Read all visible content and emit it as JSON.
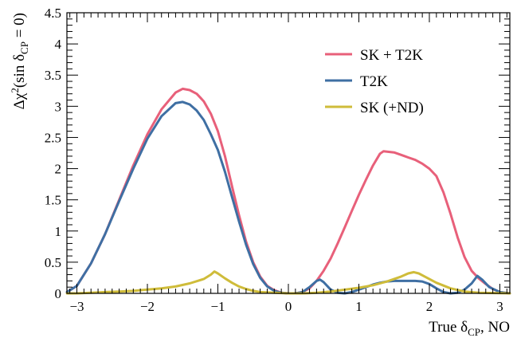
{
  "chart_data": {
    "type": "line",
    "xlabel": {
      "main": "True δ",
      "sub": "CP",
      "rest": ", NO"
    },
    "ylabel": {
      "pre": "Δχ",
      "sup": "2",
      "mid": "(sin δ",
      "sub": "CP",
      "post": " = 0)"
    },
    "xlim": [
      -3.1416,
      3.1416
    ],
    "ylim": [
      0,
      4.5
    ],
    "xticks": [
      -3,
      -2,
      -1,
      0,
      1,
      2,
      3
    ],
    "xtick_labels": [
      "−3",
      "−2",
      "−1",
      "0",
      "1",
      "2",
      "3"
    ],
    "yticks": [
      0,
      0.5,
      1,
      1.5,
      2,
      2.5,
      3,
      3.5,
      4,
      4.5
    ],
    "ytick_labels": [
      "0",
      "0.5",
      "1",
      "1.5",
      "2",
      "2.5",
      "3",
      "3.5",
      "4",
      "4.5"
    ],
    "legend_position": "top-right",
    "grid": false,
    "series": [
      {
        "name": "SK + T2K",
        "color": "#e8607a",
        "points": [
          [
            -3.14,
            0.02
          ],
          [
            -3.0,
            0.12
          ],
          [
            -2.8,
            0.48
          ],
          [
            -2.6,
            0.95
          ],
          [
            -2.4,
            1.5
          ],
          [
            -2.2,
            2.05
          ],
          [
            -2.0,
            2.55
          ],
          [
            -1.8,
            2.95
          ],
          [
            -1.6,
            3.22
          ],
          [
            -1.5,
            3.28
          ],
          [
            -1.4,
            3.26
          ],
          [
            -1.3,
            3.2
          ],
          [
            -1.2,
            3.08
          ],
          [
            -1.1,
            2.88
          ],
          [
            -1.0,
            2.6
          ],
          [
            -0.9,
            2.2
          ],
          [
            -0.8,
            1.72
          ],
          [
            -0.7,
            1.25
          ],
          [
            -0.6,
            0.83
          ],
          [
            -0.5,
            0.5
          ],
          [
            -0.4,
            0.27
          ],
          [
            -0.3,
            0.12
          ],
          [
            -0.2,
            0.05
          ],
          [
            -0.1,
            0.01
          ],
          [
            0.0,
            0.0
          ],
          [
            0.1,
            0.0
          ],
          [
            0.2,
            0.02
          ],
          [
            0.3,
            0.08
          ],
          [
            0.4,
            0.2
          ],
          [
            0.5,
            0.36
          ],
          [
            0.6,
            0.56
          ],
          [
            0.7,
            0.8
          ],
          [
            0.8,
            1.06
          ],
          [
            0.9,
            1.32
          ],
          [
            1.0,
            1.58
          ],
          [
            1.1,
            1.82
          ],
          [
            1.2,
            2.05
          ],
          [
            1.3,
            2.24
          ],
          [
            1.35,
            2.28
          ],
          [
            1.5,
            2.26
          ],
          [
            1.6,
            2.22
          ],
          [
            1.7,
            2.18
          ],
          [
            1.8,
            2.14
          ],
          [
            1.9,
            2.08
          ],
          [
            2.0,
            2.0
          ],
          [
            2.1,
            1.88
          ],
          [
            2.2,
            1.62
          ],
          [
            2.3,
            1.28
          ],
          [
            2.4,
            0.9
          ],
          [
            2.5,
            0.58
          ],
          [
            2.6,
            0.36
          ],
          [
            2.7,
            0.24
          ],
          [
            2.8,
            0.15
          ],
          [
            2.9,
            0.07
          ],
          [
            3.0,
            0.02
          ],
          [
            3.14,
            0.0
          ]
        ]
      },
      {
        "name": "T2K",
        "color": "#3f6fa3",
        "points": [
          [
            -3.14,
            0.02
          ],
          [
            -3.0,
            0.12
          ],
          [
            -2.8,
            0.48
          ],
          [
            -2.6,
            0.95
          ],
          [
            -2.4,
            1.48
          ],
          [
            -2.2,
            2.0
          ],
          [
            -2.0,
            2.48
          ],
          [
            -1.8,
            2.84
          ],
          [
            -1.6,
            3.05
          ],
          [
            -1.5,
            3.07
          ],
          [
            -1.4,
            3.03
          ],
          [
            -1.3,
            2.93
          ],
          [
            -1.2,
            2.78
          ],
          [
            -1.1,
            2.55
          ],
          [
            -1.0,
            2.3
          ],
          [
            -0.9,
            1.95
          ],
          [
            -0.8,
            1.55
          ],
          [
            -0.7,
            1.15
          ],
          [
            -0.6,
            0.78
          ],
          [
            -0.5,
            0.47
          ],
          [
            -0.4,
            0.25
          ],
          [
            -0.3,
            0.11
          ],
          [
            -0.2,
            0.04
          ],
          [
            -0.1,
            0.01
          ],
          [
            0.0,
            0.0
          ],
          [
            0.1,
            0.0
          ],
          [
            0.2,
            0.02
          ],
          [
            0.3,
            0.1
          ],
          [
            0.4,
            0.2
          ],
          [
            0.45,
            0.22
          ],
          [
            0.5,
            0.18
          ],
          [
            0.6,
            0.06
          ],
          [
            0.7,
            0.01
          ],
          [
            0.8,
            0.0
          ],
          [
            0.9,
            0.02
          ],
          [
            1.0,
            0.06
          ],
          [
            1.1,
            0.1
          ],
          [
            1.2,
            0.14
          ],
          [
            1.3,
            0.17
          ],
          [
            1.4,
            0.19
          ],
          [
            1.5,
            0.2
          ],
          [
            1.6,
            0.2
          ],
          [
            1.7,
            0.2
          ],
          [
            1.8,
            0.2
          ],
          [
            1.9,
            0.19
          ],
          [
            2.0,
            0.15
          ],
          [
            2.1,
            0.08
          ],
          [
            2.2,
            0.02
          ],
          [
            2.3,
            0.0
          ],
          [
            2.4,
            0.01
          ],
          [
            2.5,
            0.06
          ],
          [
            2.6,
            0.16
          ],
          [
            2.68,
            0.28
          ],
          [
            2.75,
            0.22
          ],
          [
            2.85,
            0.1
          ],
          [
            3.0,
            0.02
          ],
          [
            3.14,
            0.0
          ]
        ]
      },
      {
        "name": "SK (+ND)",
        "color": "#cfbc3a",
        "points": [
          [
            -3.14,
            0.0
          ],
          [
            -3.0,
            0.0
          ],
          [
            -2.8,
            0.01
          ],
          [
            -2.6,
            0.02
          ],
          [
            -2.4,
            0.03
          ],
          [
            -2.2,
            0.04
          ],
          [
            -2.0,
            0.06
          ],
          [
            -1.8,
            0.08
          ],
          [
            -1.6,
            0.11
          ],
          [
            -1.4,
            0.16
          ],
          [
            -1.2,
            0.23
          ],
          [
            -1.1,
            0.3
          ],
          [
            -1.05,
            0.35
          ],
          [
            -1.0,
            0.32
          ],
          [
            -0.9,
            0.24
          ],
          [
            -0.8,
            0.17
          ],
          [
            -0.7,
            0.11
          ],
          [
            -0.6,
            0.07
          ],
          [
            -0.5,
            0.04
          ],
          [
            -0.4,
            0.02
          ],
          [
            -0.2,
            0.01
          ],
          [
            0.0,
            0.0
          ],
          [
            0.2,
            0.0
          ],
          [
            0.4,
            0.01
          ],
          [
            0.6,
            0.03
          ],
          [
            0.8,
            0.06
          ],
          [
            1.0,
            0.09
          ],
          [
            1.2,
            0.13
          ],
          [
            1.4,
            0.19
          ],
          [
            1.6,
            0.27
          ],
          [
            1.7,
            0.32
          ],
          [
            1.78,
            0.34
          ],
          [
            1.85,
            0.32
          ],
          [
            1.95,
            0.26
          ],
          [
            2.1,
            0.17
          ],
          [
            2.3,
            0.08
          ],
          [
            2.5,
            0.03
          ],
          [
            2.7,
            0.01
          ],
          [
            3.14,
            0.0
          ]
        ]
      }
    ]
  }
}
